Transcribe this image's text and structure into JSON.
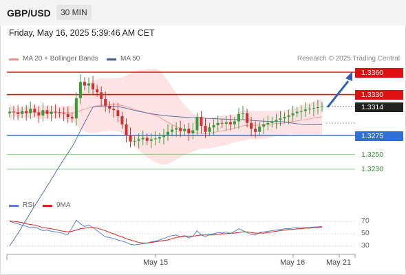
{
  "header": {
    "pair": "GBP/USD",
    "timeframe": "30 MIN"
  },
  "date_line": "Friday, May 16, 2025 5:39:46 AM CET",
  "legend": {
    "ma20": "MA 20 + Bollinger Bands",
    "ma20_color": "#f08c8c",
    "ma50": "MA 50",
    "ma50_color": "#3a5a9a",
    "credit": "Research © 2025 Trading Central"
  },
  "levels": {
    "r2": "1.3360",
    "r1": "1.3330",
    "last": "1.3314",
    "s1": "1.3275",
    "s2": "1.3250",
    "s3": "1.3230"
  },
  "rsi_legend": {
    "rsi": "RSI",
    "rsi_color": "#5b7fd6",
    "ma": "9MA",
    "ma_color": "#e02020"
  },
  "rsi_axis": [
    "70",
    "50",
    "30"
  ],
  "x_labels": [
    "May 15",
    "May 16",
    "May 21"
  ],
  "chart_data": {
    "type": "candlestick",
    "y_range": [
      1.3195,
      1.3375
    ],
    "rsi_range": [
      20,
      80
    ],
    "levels": {
      "resistance": [
        1.336,
        1.333
      ],
      "current": 1.3314,
      "support": [
        1.3275,
        1.325,
        1.323
      ]
    },
    "closes": [
      1.3307,
      1.3306,
      1.3304,
      1.3308,
      1.3305,
      1.3311,
      1.3306,
      1.3302,
      1.3309,
      1.3304,
      1.3307,
      1.3306,
      1.3305,
      1.3304,
      1.33,
      1.3298,
      1.3325,
      1.3347,
      1.3342,
      1.3345,
      1.3337,
      1.3333,
      1.3324,
      1.3315,
      1.3311,
      1.3309,
      1.3301,
      1.329,
      1.3276,
      1.3267,
      1.3268,
      1.327,
      1.3272,
      1.3268,
      1.327,
      1.3271,
      1.3273,
      1.3276,
      1.328,
      1.3283,
      1.3285,
      1.3281,
      1.3284,
      1.3278,
      1.3282,
      1.33,
      1.3288,
      1.328,
      1.3286,
      1.3289,
      1.3292,
      1.3291,
      1.3293,
      1.329,
      1.3294,
      1.3304,
      1.3305,
      1.3292,
      1.3284,
      1.328,
      1.3287,
      1.329,
      1.3292,
      1.3294,
      1.3296,
      1.3298,
      1.33,
      1.3302,
      1.3305,
      1.3307,
      1.3308,
      1.331,
      1.3311,
      1.3312,
      1.3313,
      1.3314
    ],
    "rsi": [
      70,
      68,
      66,
      64,
      62,
      60,
      61,
      58,
      55,
      56,
      54,
      53,
      52,
      50,
      49,
      60,
      72,
      66,
      62,
      64,
      60,
      55,
      50,
      45,
      44,
      42,
      40,
      38,
      36,
      33,
      32,
      33,
      34,
      35,
      37,
      38,
      40,
      42,
      45,
      47,
      48,
      45,
      47,
      43,
      46,
      55,
      48,
      45,
      49,
      50,
      52,
      51,
      53,
      50,
      54,
      58,
      55,
      52,
      49,
      48,
      52,
      53,
      54,
      55,
      56,
      57,
      58,
      58,
      59,
      60,
      59,
      60,
      60,
      61,
      61,
      62
    ],
    "rsi_ma": [
      71,
      70,
      69,
      68,
      66,
      65,
      64,
      62,
      60,
      59,
      58,
      57,
      55,
      54,
      53,
      54,
      56,
      58,
      59,
      60,
      60,
      59,
      57,
      55,
      52,
      50,
      47,
      45,
      42,
      40,
      38,
      36,
      35,
      35,
      36,
      37,
      38,
      39,
      40,
      42,
      44,
      45,
      46,
      46,
      46,
      47,
      48,
      48,
      48,
      48,
      49,
      50,
      50,
      51,
      51,
      52,
      53,
      53,
      52,
      51,
      51,
      51,
      52,
      53,
      54,
      55,
      56,
      57,
      57,
      58,
      58,
      59,
      59,
      60,
      60,
      61
    ]
  }
}
